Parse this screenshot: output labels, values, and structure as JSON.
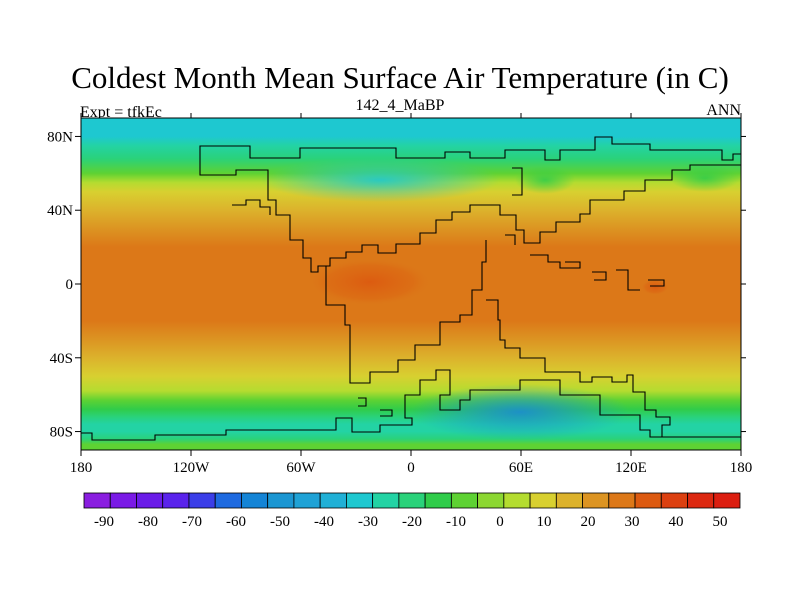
{
  "title": "Coldest Month Mean Surface Air Temperature (in C)",
  "left_label": "Expt = tfkEc",
  "center_label": "142_4_MaBP",
  "right_label": "ANN",
  "map": {
    "lon_range": [
      -180,
      180
    ],
    "lat_range": [
      -90,
      90
    ],
    "x_ticks": [
      {
        "value": -180,
        "label": "180"
      },
      {
        "value": -120,
        "label": "120W"
      },
      {
        "value": -60,
        "label": "60W"
      },
      {
        "value": 0,
        "label": "0"
      },
      {
        "value": 60,
        "label": "60E"
      },
      {
        "value": 120,
        "label": "120E"
      },
      {
        "value": 180,
        "label": "180"
      }
    ],
    "y_ticks": [
      {
        "value": 80,
        "label": "80N"
      },
      {
        "value": 40,
        "label": "40N"
      },
      {
        "value": 0,
        "label": "0"
      },
      {
        "value": -40,
        "label": "40S"
      },
      {
        "value": -80,
        "label": "80S"
      }
    ],
    "zonal_profile": [
      {
        "lat": 90,
        "value": -32
      },
      {
        "lat": 85,
        "value": -32
      },
      {
        "lat": 80,
        "value": -30
      },
      {
        "lat": 75,
        "value": -26
      },
      {
        "lat": 68,
        "value": -18
      },
      {
        "lat": 60,
        "value": -8
      },
      {
        "lat": 55,
        "value": 3
      },
      {
        "lat": 50,
        "value": 10
      },
      {
        "lat": 40,
        "value": 17
      },
      {
        "lat": 30,
        "value": 22
      },
      {
        "lat": 20,
        "value": 28
      },
      {
        "lat": 5,
        "value": 30
      },
      {
        "lat": -10,
        "value": 29
      },
      {
        "lat": -20,
        "value": 26
      },
      {
        "lat": -30,
        "value": 21
      },
      {
        "lat": -40,
        "value": 15
      },
      {
        "lat": -50,
        "value": 8
      },
      {
        "lat": -58,
        "value": 3
      },
      {
        "lat": -63,
        "value": -8
      },
      {
        "lat": -68,
        "value": -16
      },
      {
        "lat": -72,
        "value": -22
      },
      {
        "lat": -76,
        "value": -26
      },
      {
        "lat": -80,
        "value": -24
      },
      {
        "lat": -84,
        "value": -18
      },
      {
        "lat": -87,
        "value": -10
      },
      {
        "lat": -90,
        "value": -6
      }
    ]
  },
  "colorbar": {
    "labels": [
      "-90",
      "-80",
      "-70",
      "-60",
      "-50",
      "-40",
      "-30",
      "-20",
      "-10",
      "0",
      "10",
      "20",
      "30",
      "40",
      "50"
    ],
    "colors": [
      "#8a1ee0",
      "#7a1ae6",
      "#6a1ce8",
      "#5a23ec",
      "#3b3ee8",
      "#1e6ae0",
      "#1484d6",
      "#1b96d2",
      "#1fa2d6",
      "#20b0d6",
      "#1ec8d0",
      "#23d3a4",
      "#2ad27a",
      "#30cc4a",
      "#5ed233",
      "#8cd732",
      "#b4dc30",
      "#d8d030",
      "#dcb22c",
      "#dc9422",
      "#dc7818",
      "#dc5a10",
      "#dc4010",
      "#dc2810",
      "#dc1e10"
    ]
  }
}
